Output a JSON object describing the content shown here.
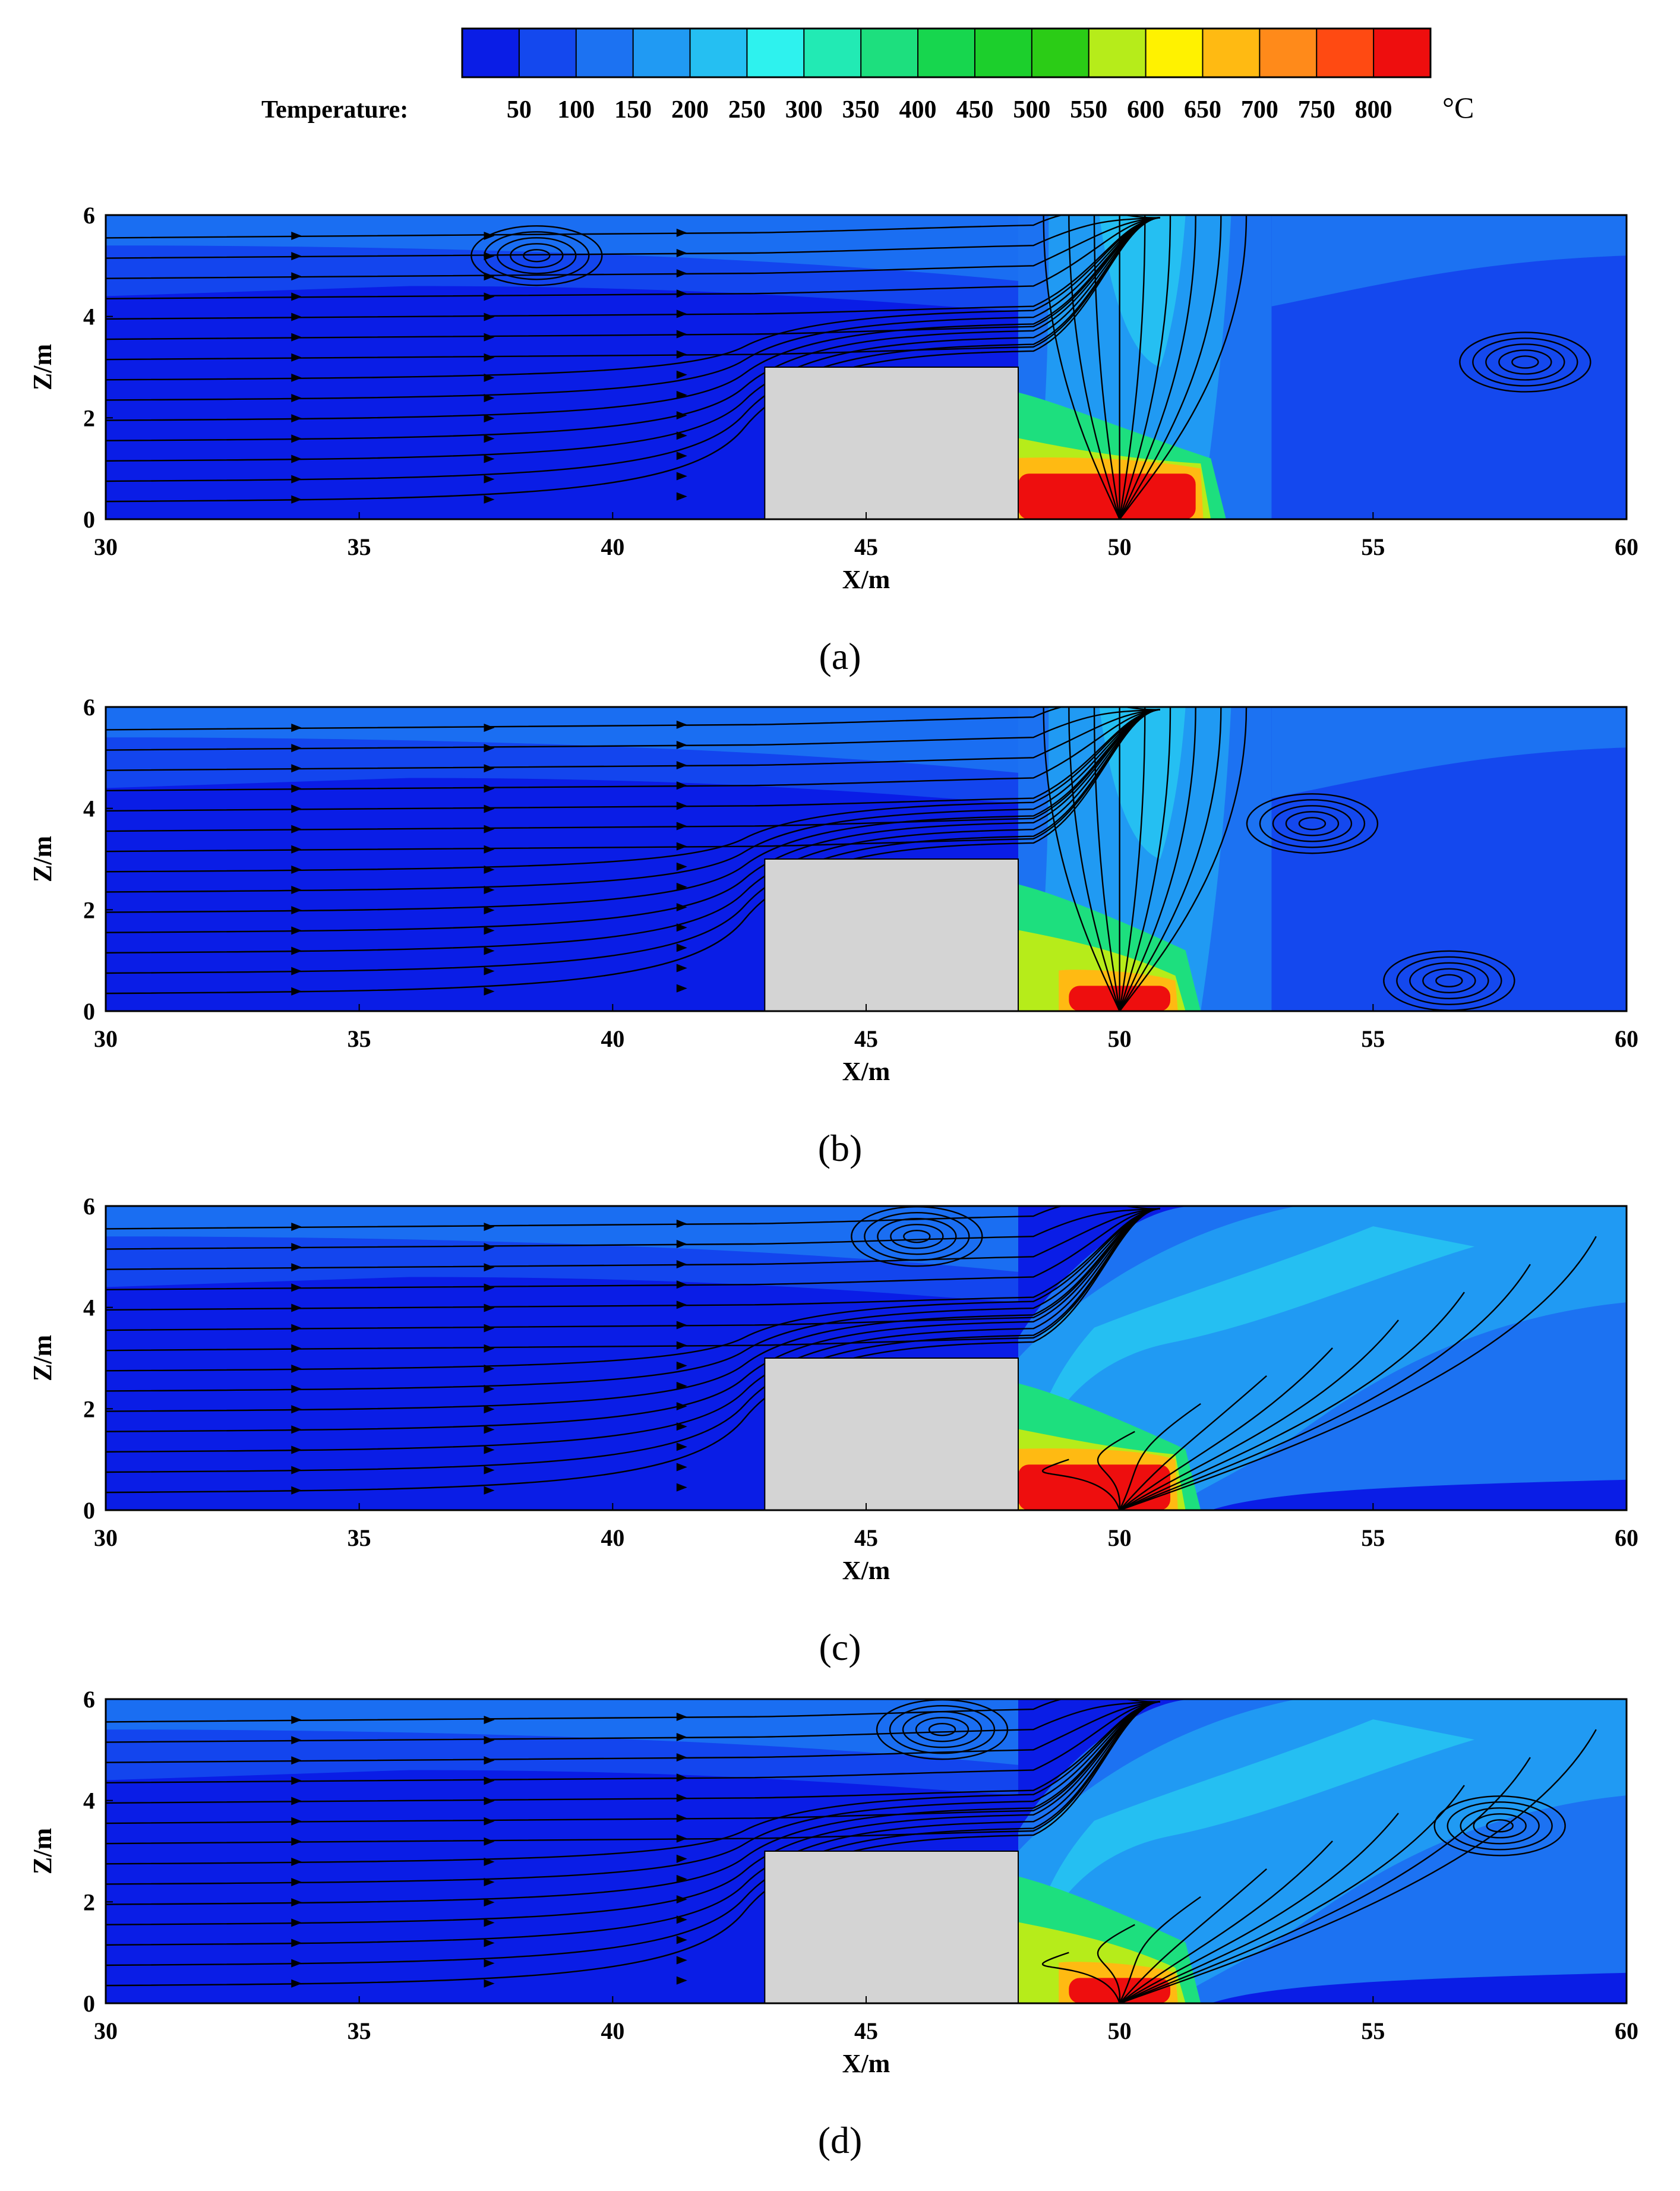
{
  "colorbar": {
    "label": "Temperature:",
    "unit": "°C",
    "levels": [
      50,
      100,
      150,
      200,
      250,
      300,
      350,
      400,
      450,
      500,
      550,
      600,
      650,
      700,
      750,
      800
    ],
    "colors": [
      "#0a1de6",
      "#1448ee",
      "#1c72f2",
      "#209af3",
      "#25bff2",
      "#2ef2ee",
      "#22eab4",
      "#1ddf7e",
      "#17d64e",
      "#1ccf2c",
      "#2bcc16",
      "#b6ec1a",
      "#fff200",
      "#ffba12",
      "#ff8a1a",
      "#ff4a12",
      "#ee0e0e"
    ]
  },
  "chart_data": [
    {
      "type": "heatmap",
      "panel": "a",
      "caption": "(a)",
      "xlabel": "X/m",
      "ylabel": "Z/m",
      "xlim": [
        30,
        60
      ],
      "ylim": [
        0,
        6
      ],
      "xticks": [
        30,
        35,
        40,
        45,
        50,
        55,
        60
      ],
      "yticks": [
        0,
        2,
        4,
        6
      ],
      "obstacle": {
        "x": [
          43,
          48
        ],
        "z": [
          0,
          3
        ]
      },
      "fire_source_x": 50,
      "hot_zone": {
        "x": [
          48,
          51.5
        ],
        "z": [
          0,
          0.9
        ],
        "temperature_c": 800
      },
      "plume": {
        "x": [
          48,
          53
        ],
        "temperature_c": 200
      },
      "vortices": [
        {
          "x": 38.5,
          "z": 5.2
        },
        {
          "x": 58,
          "z": 3.1
        }
      ]
    },
    {
      "type": "heatmap",
      "panel": "b",
      "caption": "(b)",
      "xlabel": "X/m",
      "ylabel": "Z/m",
      "xlim": [
        30,
        60
      ],
      "ylim": [
        0,
        6
      ],
      "xticks": [
        30,
        35,
        40,
        45,
        50,
        55,
        60
      ],
      "yticks": [
        0,
        2,
        4,
        6
      ],
      "obstacle": {
        "x": [
          43,
          48
        ],
        "z": [
          0,
          3
        ]
      },
      "fire_source_x": 50,
      "hot_zone": {
        "x": [
          49,
          51
        ],
        "z": [
          0,
          0.5
        ],
        "temperature_c": 800
      },
      "plume": {
        "x": [
          48,
          53
        ],
        "temperature_c": 200
      },
      "vortices": [
        {
          "x": 53.8,
          "z": 3.7
        },
        {
          "x": 56.5,
          "z": 0.6
        }
      ]
    },
    {
      "type": "heatmap",
      "panel": "c",
      "caption": "(c)",
      "xlabel": "X/m",
      "ylabel": "Z/m",
      "xlim": [
        30,
        60
      ],
      "ylim": [
        0,
        6
      ],
      "xticks": [
        30,
        35,
        40,
        45,
        50,
        55,
        60
      ],
      "yticks": [
        0,
        2,
        4,
        6
      ],
      "obstacle": {
        "x": [
          43,
          48
        ],
        "z": [
          0,
          3
        ]
      },
      "fire_source_x": 50,
      "hot_zone": {
        "x": [
          48,
          51
        ],
        "z": [
          0,
          0.9
        ],
        "temperature_c": 800
      },
      "plume": {
        "x": [
          48,
          60
        ],
        "temperature_c": 200
      },
      "vortices": [
        {
          "x": 46,
          "z": 5.4
        }
      ]
    },
    {
      "type": "heatmap",
      "panel": "d",
      "caption": "(d)",
      "xlabel": "X/m",
      "ylabel": "Z/m",
      "xlim": [
        30,
        60
      ],
      "ylim": [
        0,
        6
      ],
      "xticks": [
        30,
        35,
        40,
        45,
        50,
        55,
        60
      ],
      "yticks": [
        0,
        2,
        4,
        6
      ],
      "obstacle": {
        "x": [
          43,
          48
        ],
        "z": [
          0,
          3
        ]
      },
      "fire_source_x": 50,
      "hot_zone": {
        "x": [
          49,
          51
        ],
        "z": [
          0,
          0.5
        ],
        "temperature_c": 800
      },
      "plume": {
        "x": [
          48,
          60
        ],
        "temperature_c": 200
      },
      "vortices": [
        {
          "x": 46.5,
          "z": 5.4
        },
        {
          "x": 57.5,
          "z": 3.5
        }
      ]
    }
  ]
}
